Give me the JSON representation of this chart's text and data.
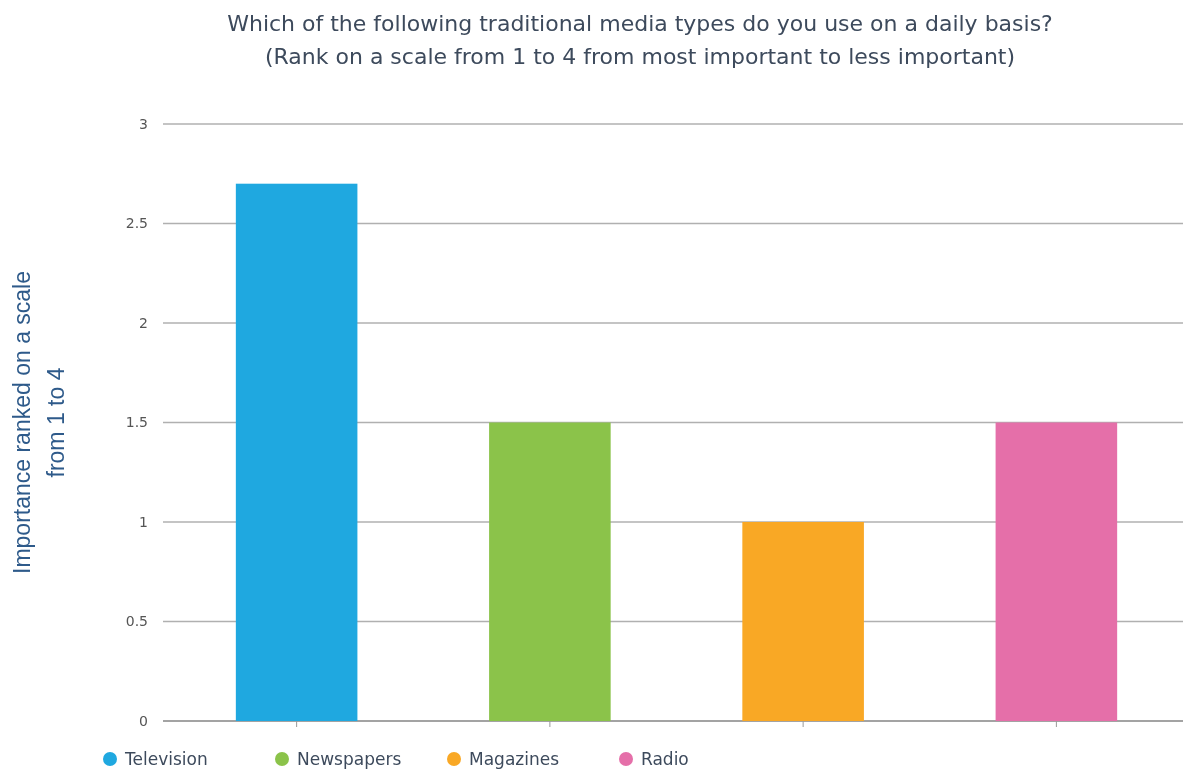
{
  "chart_data": {
    "type": "bar",
    "title": "Which of the following traditional media types do you use on a daily basis? (Rank on a scale from 1 to 4 from most important to less important)",
    "ylabel": "Importance ranked on a scale from 1 to 4",
    "categories": [
      null,
      null,
      null,
      null
    ],
    "series": [
      {
        "name": "Television",
        "color": "#1fa8e0",
        "values": [
          2.7,
          null,
          null,
          null
        ]
      },
      {
        "name": "Newspapers",
        "color": "#8bc34a",
        "values": [
          null,
          1.5,
          null,
          null
        ]
      },
      {
        "name": "Magazines",
        "color": "#f9a825",
        "values": [
          null,
          null,
          1.0,
          null
        ]
      },
      {
        "name": "Radio",
        "color": "#e56fa9",
        "values": [
          null,
          null,
          null,
          1.5
        ]
      }
    ],
    "stacked": true,
    "ylim": [
      0,
      3
    ],
    "yticks": [
      0,
      0.5,
      1,
      1.5,
      2,
      2.5,
      3
    ],
    "grid": "y",
    "legend": "bottom"
  }
}
